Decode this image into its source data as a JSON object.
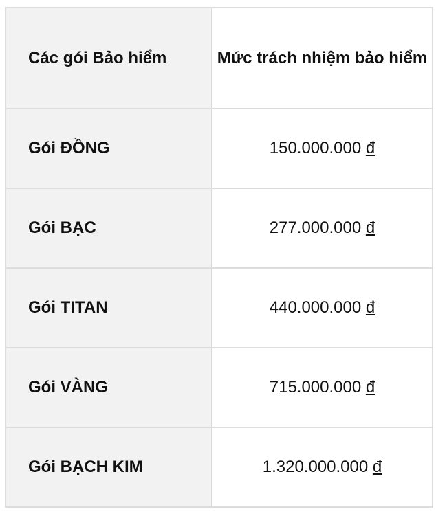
{
  "header": {
    "col1": "Các gói Bảo hiểm",
    "col2": "Mức trách nhiệm bảo hiểm"
  },
  "rows": [
    {
      "name": "Gói ĐỒNG",
      "amount": "150.000.000",
      "currency": "đ"
    },
    {
      "name": "Gói BẠC",
      "amount": "277.000.000",
      "currency": "đ"
    },
    {
      "name": "Gói TITAN",
      "amount": "440.000.000",
      "currency": "đ"
    },
    {
      "name": "Gói VÀNG",
      "amount": "715.000.000",
      "currency": "đ"
    },
    {
      "name": "Gói BẠCH KIM",
      "amount": "1.320.000.000",
      "currency": "đ"
    }
  ]
}
